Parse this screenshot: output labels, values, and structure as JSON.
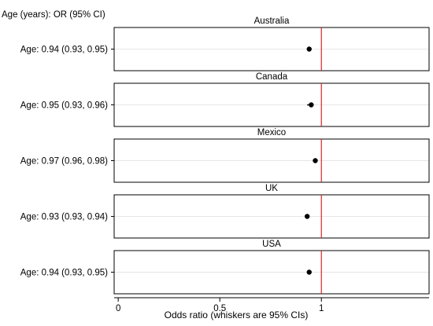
{
  "chart_data": {
    "type": "scatter",
    "title": "",
    "header_label": "Age (years): OR (95% CI)",
    "xlabel": "Odds ratio (whiskers are 95% CIs)",
    "xlim": [
      -0.02,
      1.53
    ],
    "xticks": [
      0,
      0.5,
      1
    ],
    "xtick_labels": [
      "0",
      "0.5",
      "1"
    ],
    "reference_line": 1,
    "reference_color": "#d62728",
    "point_color": "#000000",
    "grid": true,
    "panels": [
      {
        "title": "Australia",
        "label": "Age: 0.94 (0.93, 0.95)",
        "or": 0.94,
        "ci": [
          0.93,
          0.95
        ]
      },
      {
        "title": "Canada",
        "label": "Age: 0.95 (0.93, 0.96)",
        "or": 0.95,
        "ci": [
          0.93,
          0.96
        ]
      },
      {
        "title": "Mexico",
        "label": "Age: 0.97 (0.96, 0.98)",
        "or": 0.97,
        "ci": [
          0.96,
          0.98
        ]
      },
      {
        "title": "UK",
        "label": "Age: 0.93 (0.93, 0.94)",
        "or": 0.93,
        "ci": [
          0.93,
          0.94
        ]
      },
      {
        "title": "USA",
        "label": "Age: 0.94 (0.93, 0.95)",
        "or": 0.94,
        "ci": [
          0.93,
          0.95
        ]
      }
    ]
  }
}
